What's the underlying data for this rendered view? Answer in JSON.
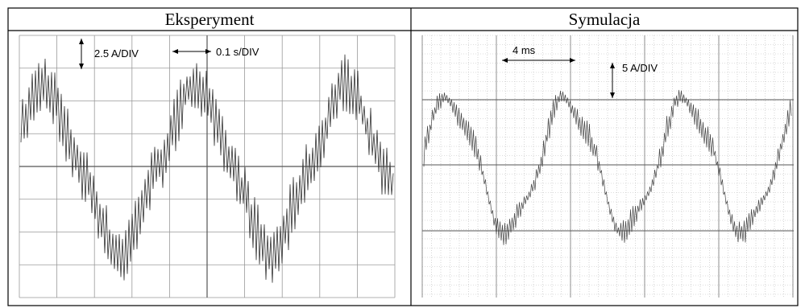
{
  "table": {
    "headers": [
      "Eksperyment",
      "Symulacja"
    ]
  },
  "panels": [
    {
      "annotations": [
        "2.5 A/DIV",
        "0.1 s/DIV"
      ]
    },
    {
      "annotations": [
        "4 ms",
        "5 A/DIV"
      ]
    }
  ]
}
